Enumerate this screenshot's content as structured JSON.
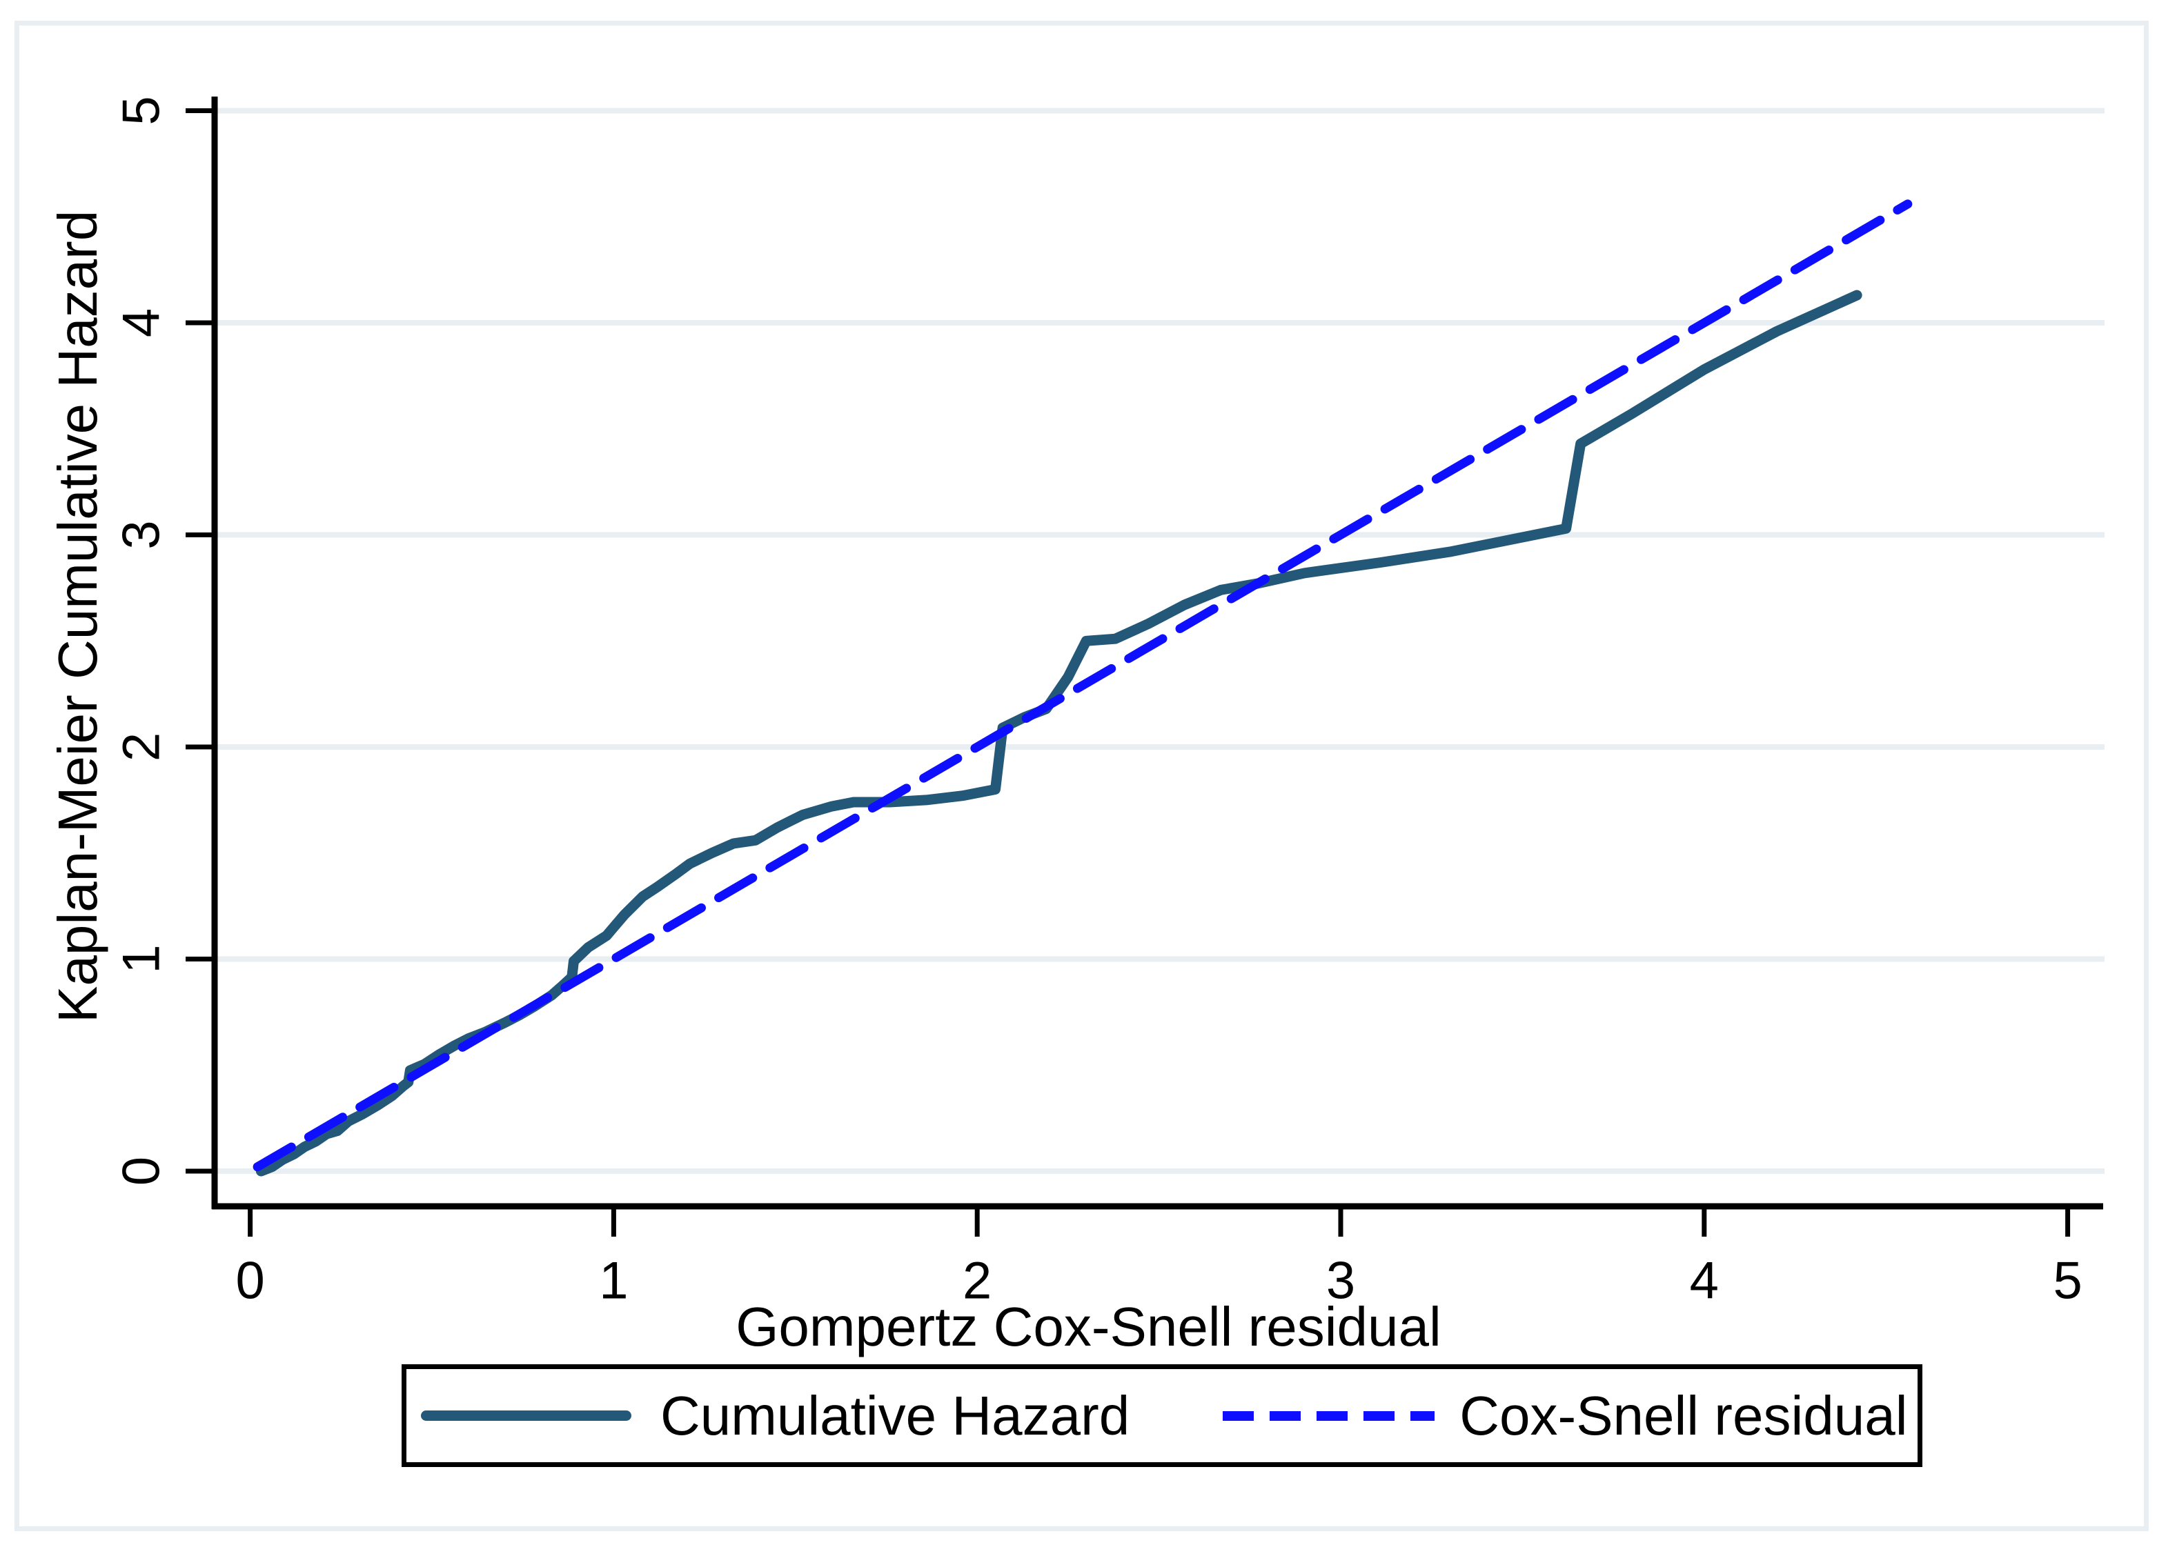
{
  "chart_data": {
    "type": "line",
    "title": "",
    "xlabel": "Gompertz Cox-Snell residual",
    "ylabel": "Kaplan-Meier Cumulative Hazard",
    "xlim": [
      0,
      5.2
    ],
    "ylim": [
      0,
      5.2
    ],
    "xticks": [
      "0",
      "1",
      "2",
      "3",
      "4",
      "5"
    ],
    "yticks": [
      "0",
      "1",
      "2",
      "3",
      "4",
      "5"
    ],
    "grid": "horizontal-only",
    "legend_position": "bottom-center",
    "series": [
      {
        "name": "Cumulative Hazard",
        "style": "solid",
        "color": "#245878",
        "points": [
          [
            0.03,
            0.0
          ],
          [
            0.06,
            0.02
          ],
          [
            0.09,
            0.055
          ],
          [
            0.12,
            0.08
          ],
          [
            0.15,
            0.115
          ],
          [
            0.18,
            0.14
          ],
          [
            0.21,
            0.175
          ],
          [
            0.24,
            0.19
          ],
          [
            0.27,
            0.235
          ],
          [
            0.31,
            0.27
          ],
          [
            0.35,
            0.31
          ],
          [
            0.39,
            0.355
          ],
          [
            0.42,
            0.4
          ],
          [
            0.435,
            0.42
          ],
          [
            0.44,
            0.475
          ],
          [
            0.48,
            0.505
          ],
          [
            0.52,
            0.55
          ],
          [
            0.56,
            0.59
          ],
          [
            0.6,
            0.625
          ],
          [
            0.645,
            0.655
          ],
          [
            0.7,
            0.7
          ],
          [
            0.74,
            0.735
          ],
          [
            0.78,
            0.775
          ],
          [
            0.83,
            0.83
          ],
          [
            0.86,
            0.875
          ],
          [
            0.885,
            0.915
          ],
          [
            0.89,
            0.99
          ],
          [
            0.93,
            1.055
          ],
          [
            0.98,
            1.11
          ],
          [
            1.03,
            1.21
          ],
          [
            1.08,
            1.295
          ],
          [
            1.12,
            1.34
          ],
          [
            1.17,
            1.4
          ],
          [
            1.21,
            1.45
          ],
          [
            1.27,
            1.5
          ],
          [
            1.33,
            1.545
          ],
          [
            1.39,
            1.56
          ],
          [
            1.45,
            1.62
          ],
          [
            1.52,
            1.68
          ],
          [
            1.6,
            1.72
          ],
          [
            1.66,
            1.74
          ],
          [
            1.76,
            1.74
          ],
          [
            1.86,
            1.75
          ],
          [
            1.96,
            1.77
          ],
          [
            2.05,
            1.8
          ],
          [
            2.07,
            2.09
          ],
          [
            2.13,
            2.14
          ],
          [
            2.19,
            2.18
          ],
          [
            2.25,
            2.33
          ],
          [
            2.3,
            2.5
          ],
          [
            2.38,
            2.51
          ],
          [
            2.47,
            2.58
          ],
          [
            2.57,
            2.67
          ],
          [
            2.67,
            2.74
          ],
          [
            2.77,
            2.77
          ],
          [
            2.9,
            2.82
          ],
          [
            3.11,
            2.87
          ],
          [
            3.3,
            2.92
          ],
          [
            3.62,
            3.03
          ],
          [
            3.66,
            3.43
          ],
          [
            3.8,
            3.57
          ],
          [
            4.0,
            3.78
          ],
          [
            4.2,
            3.96
          ],
          [
            4.42,
            4.13
          ]
        ]
      },
      {
        "name": "Cox-Snell residual",
        "style": "dashed",
        "color": "#0f0fff",
        "points": [
          [
            0.02,
            0.02
          ],
          [
            4.56,
            4.56
          ]
        ]
      }
    ]
  },
  "legend": {
    "items": [
      {
        "label": "Cumulative Hazard",
        "style": "solid",
        "color": "#245878"
      },
      {
        "label": "Cox-Snell residual",
        "style": "dashed",
        "color": "#0f0fff"
      }
    ]
  },
  "colors": {
    "background": "#ffffff",
    "figure_border": "#e8eef1",
    "gridline": "#e8eef1",
    "axis": "#000000",
    "text": "#000000",
    "solid_series": "#245878",
    "dashed_series": "#0f0fff"
  }
}
